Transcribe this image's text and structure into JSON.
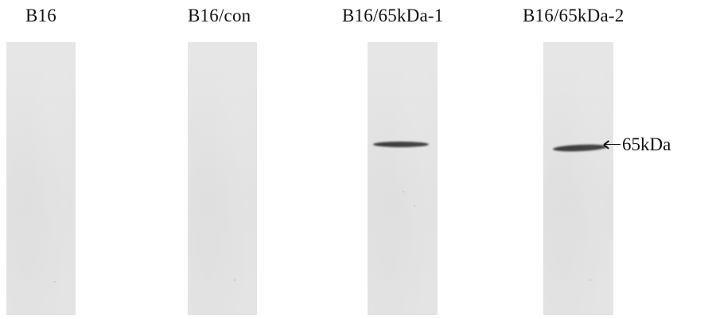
{
  "lanes": [
    {
      "label": "B16",
      "has_band": false
    },
    {
      "label": "B16/con",
      "has_band": false
    },
    {
      "label": "B16/65kDa-1",
      "has_band": true
    },
    {
      "label": "B16/65kDa-2",
      "has_band": true
    }
  ],
  "marker": {
    "label": "65kDa",
    "arrow_icon": "left-arrow-icon"
  },
  "colors": {
    "background": "#ffffff",
    "lane": "#e4e4e4",
    "band": "#3b3b3b",
    "text": "#111111"
  }
}
